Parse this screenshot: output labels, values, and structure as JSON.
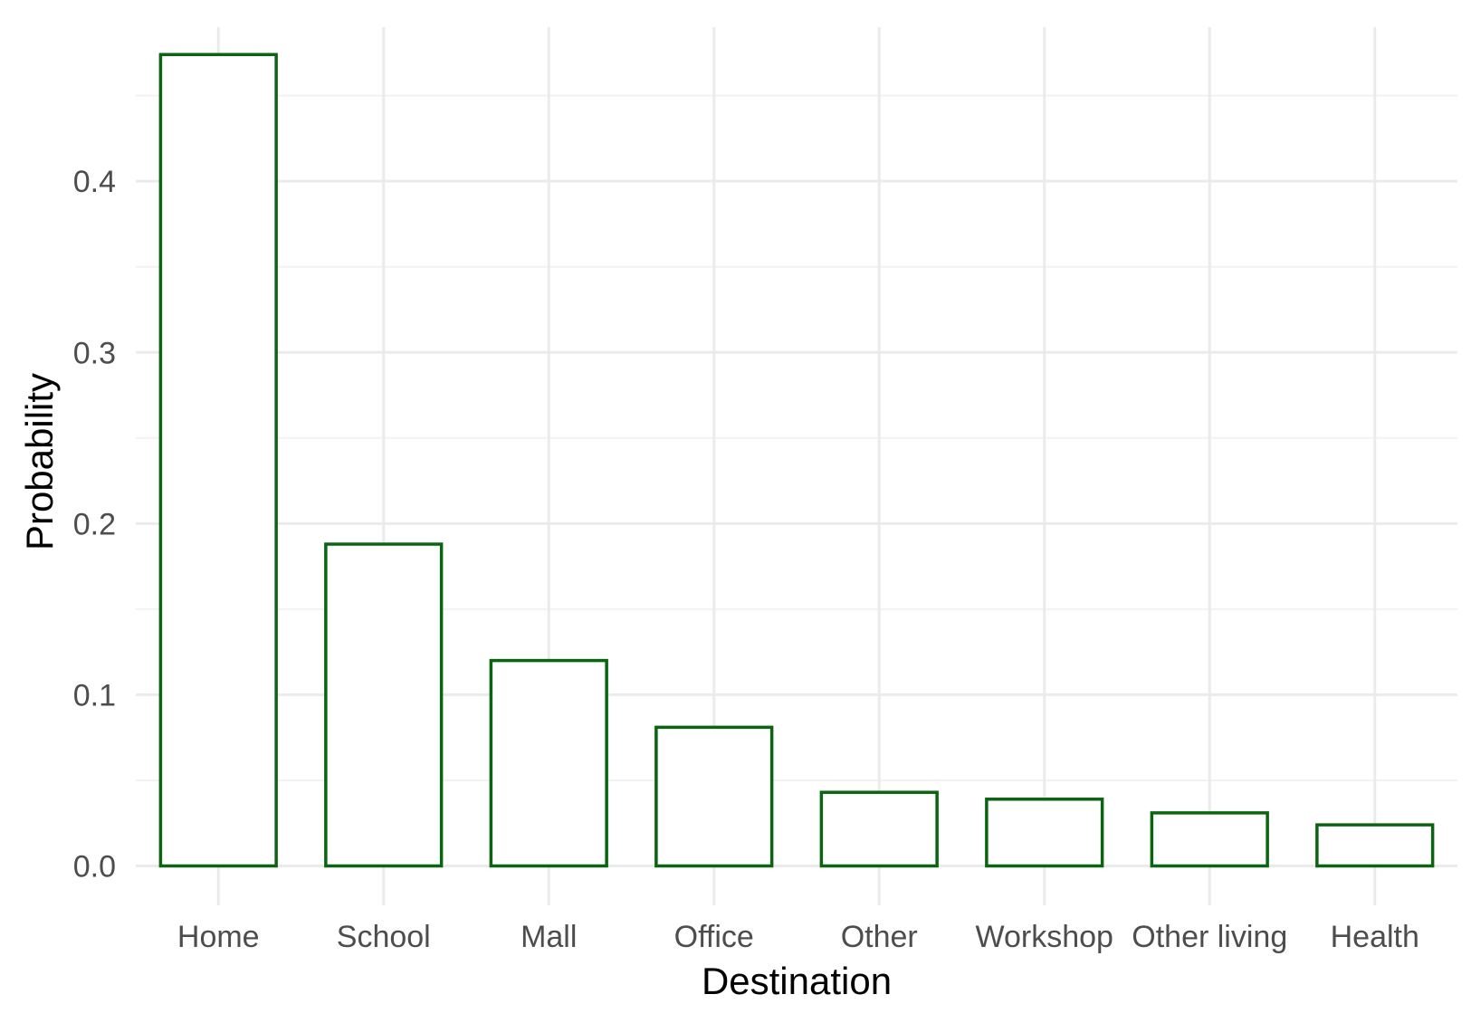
{
  "chart_data": {
    "type": "bar",
    "xlabel": "Destination",
    "ylabel": "Probability",
    "categories": [
      "Home",
      "School",
      "Mall",
      "Office",
      "Other",
      "Workshop",
      "Other living",
      "Health"
    ],
    "values": [
      0.474,
      0.188,
      0.12,
      0.081,
      0.043,
      0.039,
      0.031,
      0.024
    ],
    "ylim": [
      -0.023,
      0.49
    ],
    "yticks": [
      "0.0",
      "0.1",
      "0.2",
      "0.3",
      "0.4"
    ],
    "ytick_values": [
      0.0,
      0.1,
      0.2,
      0.3,
      0.4
    ],
    "grid": true,
    "legend": "none",
    "colors": {
      "bar_outline": "#0b6410",
      "bar_fill": "#ffffff",
      "grid_major": "#ebebeb",
      "grid_minor": "#f2f2f2"
    }
  }
}
